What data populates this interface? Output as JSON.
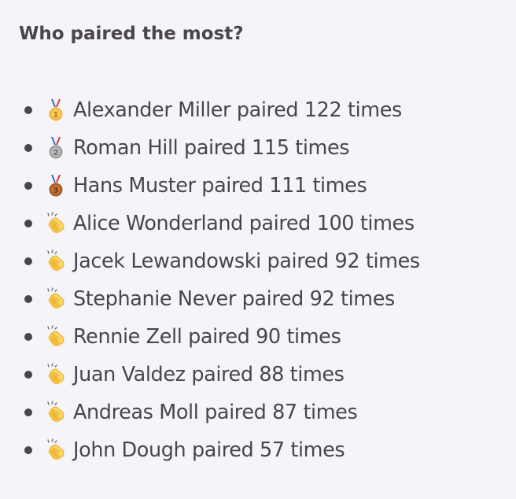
{
  "heading": "Who paired the most?",
  "colors": {
    "text": "#4a4548",
    "background": "#f5f5f9",
    "gold": "#f2b33d",
    "silver": "#9a9a9a",
    "bronze": "#b5652b",
    "clap": "#f6c142"
  },
  "rankings": [
    {
      "icon": "gold-medal-icon",
      "text": "Alexander Miller paired 122 times"
    },
    {
      "icon": "silver-medal-icon",
      "text": "Roman Hill paired 115 times"
    },
    {
      "icon": "bronze-medal-icon",
      "text": "Hans Muster paired 111 times"
    },
    {
      "icon": "clapping-hands-icon",
      "text": "Alice Wonderland paired 100 times"
    },
    {
      "icon": "clapping-hands-icon",
      "text": "Jacek Lewandowski paired 92 times"
    },
    {
      "icon": "clapping-hands-icon",
      "text": "Stephanie Never paired 92 times"
    },
    {
      "icon": "clapping-hands-icon",
      "text": "Rennie Zell paired 90 times"
    },
    {
      "icon": "clapping-hands-icon",
      "text": "Juan Valdez paired 88 times"
    },
    {
      "icon": "clapping-hands-icon",
      "text": "Andreas Moll paired 87 times"
    },
    {
      "icon": "clapping-hands-icon",
      "text": "John Dough paired 57 times"
    }
  ]
}
